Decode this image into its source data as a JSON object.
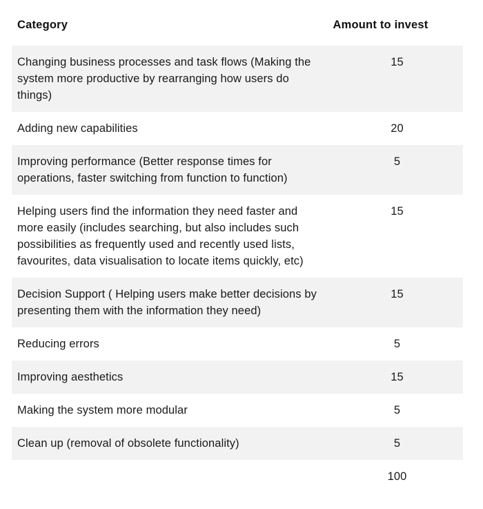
{
  "header": {
    "category_label": "Category",
    "amount_label": "Amount to invest"
  },
  "rows": [
    {
      "category": "Changing business processes and task flows (Making the system more productive by rearranging how users do things)",
      "amount": "15",
      "shaded": true
    },
    {
      "category": "Adding new capabilities",
      "amount": "20",
      "shaded": false
    },
    {
      "category": "Improving performance (Better response times for operations, faster switching from function to function)",
      "amount": "5",
      "shaded": true
    },
    {
      "category": "Helping users find the information they need faster and more easily (includes searching, but also includes such possibilities as frequently used and recently used lists, favourites, data visualisation to locate items quickly, etc)",
      "amount": "15",
      "shaded": false
    },
    {
      "category": "Decision Support ( Helping users make better decisions by presenting them with the information they need)",
      "amount": "15",
      "shaded": true
    },
    {
      "category": "Reducing errors",
      "amount": "5",
      "shaded": false
    },
    {
      "category": "Improving aesthetics",
      "amount": "15",
      "shaded": true
    },
    {
      "category": "Making the system more modular",
      "amount": "5",
      "shaded": false
    },
    {
      "category": "Clean up (removal of obsolete functionality)",
      "amount": "5",
      "shaded": true
    },
    {
      "category": "",
      "amount": "100",
      "shaded": false,
      "is_total": true
    }
  ],
  "colors": {
    "shaded_row_bg": "#f2f2f2",
    "text": "#1a1a1a",
    "header_text": "#111111",
    "page_bg": "#ffffff"
  },
  "chart_data": {
    "type": "table",
    "title": "",
    "columns": [
      "Category",
      "Amount to invest"
    ],
    "rows": [
      [
        "Changing business processes and task flows (Making the system more productive by rearranging how users do things)",
        15
      ],
      [
        "Adding new capabilities",
        20
      ],
      [
        "Improving performance (Better response times for operations, faster switching from function to function)",
        5
      ],
      [
        "Helping users find the information they need faster and more easily (includes searching, but also includes such possibilities as frequently used and recently used lists, favourites, data visualisation to locate items quickly, etc)",
        15
      ],
      [
        "Decision Support ( Helping users make better decisions by presenting them with the information they need)",
        15
      ],
      [
        "Reducing errors",
        5
      ],
      [
        "Improving aesthetics",
        15
      ],
      [
        "Making the system more modular",
        5
      ],
      [
        "Clean up (removal of obsolete functionality)",
        5
      ]
    ],
    "total": 100,
    "layout_hints": {
      "shaded_rows": [
        0,
        2,
        4,
        6,
        8
      ],
      "amount_column_align": "center",
      "borders": "none, zebra shading only"
    }
  }
}
